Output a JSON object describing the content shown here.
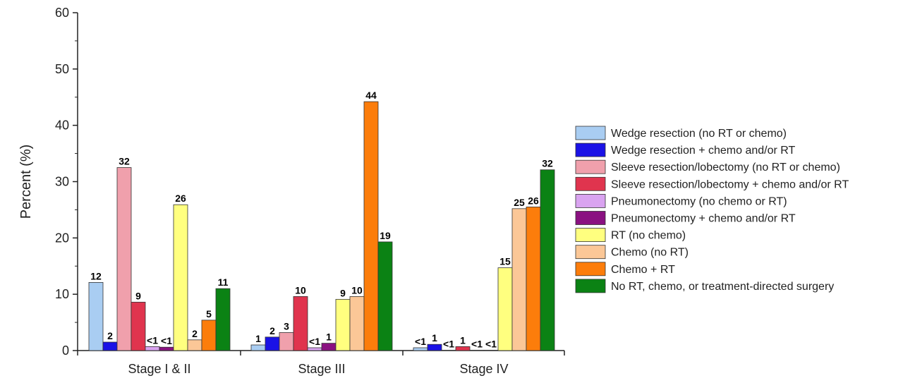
{
  "chart_data": {
    "type": "bar",
    "ylabel": "Percent (%)",
    "xlabel": "",
    "ylim": [
      0,
      60
    ],
    "yticks": [
      0,
      10,
      20,
      30,
      40,
      50,
      60
    ],
    "grid": false,
    "legend_position": "right",
    "categories": [
      "Stage I & II",
      "Stage III",
      "Stage IV"
    ],
    "series": [
      {
        "name": "Wedge resection (no RT or chemo)",
        "color": "#a9cdf2",
        "values": [
          12.1,
          1.0,
          0.5
        ],
        "labels": [
          "12",
          "1",
          "<1"
        ]
      },
      {
        "name": "Wedge resection + chemo and/or RT",
        "color": "#1a12e6",
        "values": [
          1.5,
          2.4,
          1.1
        ],
        "labels": [
          "2",
          "2",
          "1"
        ]
      },
      {
        "name": "Sleeve resection/lobectomy (no RT or chemo)",
        "color": "#f0a0ac",
        "values": [
          32.5,
          3.2,
          0.05
        ],
        "labels": [
          "32",
          "3",
          "<1"
        ]
      },
      {
        "name": "Sleeve resection/lobectomy + chemo and/or RT",
        "color": "#e0344e",
        "values": [
          8.6,
          9.6,
          0.7
        ],
        "labels": [
          "9",
          "10",
          "1"
        ]
      },
      {
        "name": "Pneumonectomy (no chemo or RT)",
        "color": "#d9a3f0",
        "values": [
          0.7,
          0.5,
          0.05
        ],
        "labels": [
          "<1",
          "<1",
          "<1"
        ]
      },
      {
        "name": "Pneumonectomy + chemo and/or RT",
        "color": "#8a1181",
        "values": [
          0.6,
          1.3,
          0.05
        ],
        "labels": [
          "<1",
          "1",
          "<1"
        ]
      },
      {
        "name": "RT (no chemo)",
        "color": "#ffff7f",
        "values": [
          25.9,
          9.1,
          14.7
        ],
        "labels": [
          "26",
          "9",
          "15"
        ]
      },
      {
        "name": "Chemo (no RT)",
        "color": "#fbc797",
        "values": [
          1.9,
          9.6,
          25.2
        ],
        "labels": [
          "2",
          "10",
          "25"
        ]
      },
      {
        "name": "Chemo + RT",
        "color": "#fc7d0b",
        "values": [
          5.4,
          44.2,
          25.5
        ],
        "labels": [
          "5",
          "44",
          "26"
        ]
      },
      {
        "name": "No RT, chemo, or treatment-directed surgery",
        "color": "#0b8214",
        "values": [
          11.0,
          19.3,
          32.1
        ],
        "labels": [
          "11",
          "19",
          "32"
        ]
      }
    ]
  }
}
